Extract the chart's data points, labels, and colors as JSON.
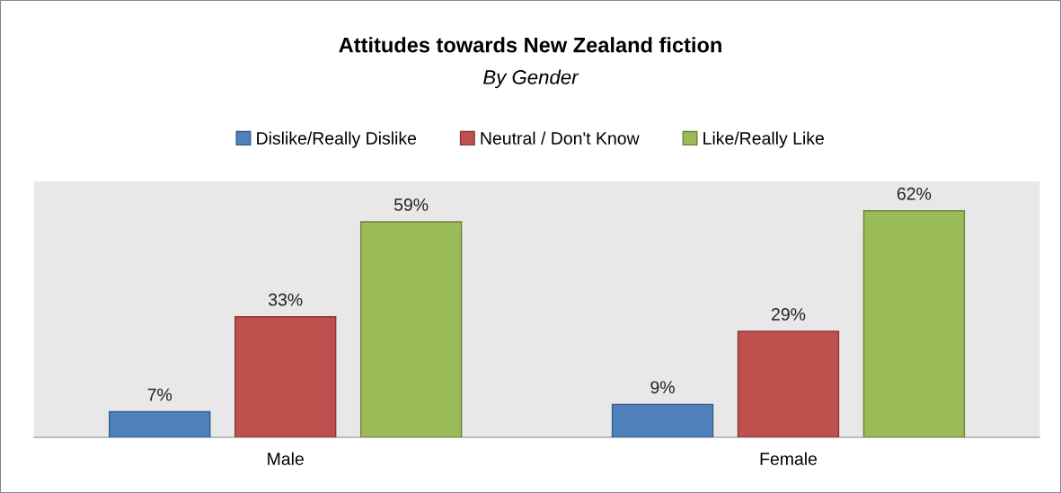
{
  "chart_data": {
    "type": "bar",
    "title": "Attitudes towards New Zealand fiction",
    "subtitle": "By Gender",
    "categories": [
      "Male",
      "Female"
    ],
    "series": [
      {
        "name": "Dislike/Really Dislike",
        "color": "#4f81bd",
        "values": [
          7,
          9
        ],
        "value_labels": [
          "7%",
          "9%"
        ]
      },
      {
        "name": "Neutral / Don't Know",
        "color": "#c0504d",
        "values": [
          33,
          29
        ],
        "value_labels": [
          "33%",
          "29%"
        ]
      },
      {
        "name": "Like/Really Like",
        "color": "#9bbb59",
        "values": [
          59,
          62
        ],
        "value_labels": [
          "59%",
          "62%"
        ]
      }
    ],
    "legend": "top",
    "grid": false
  }
}
